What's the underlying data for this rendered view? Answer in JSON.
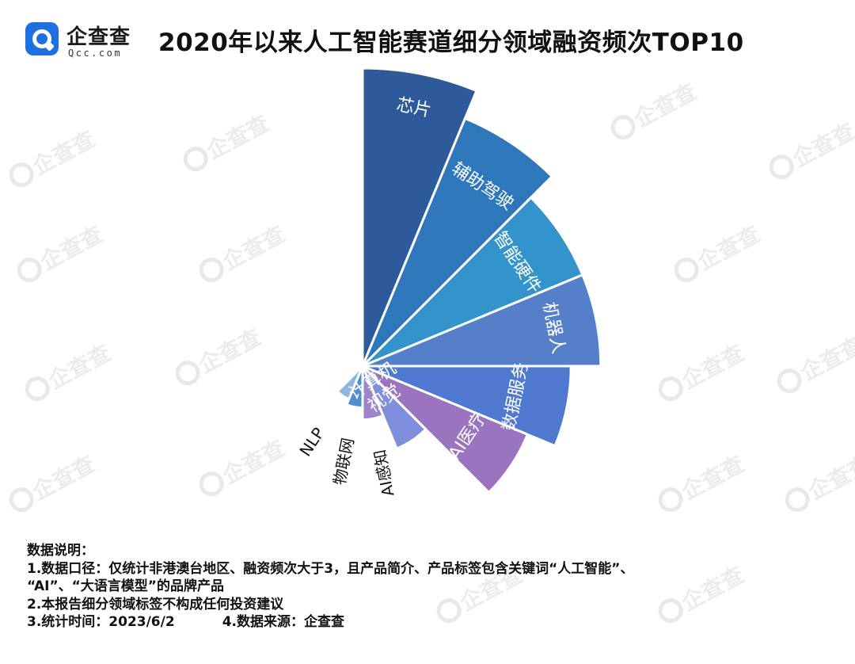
{
  "logo": {
    "name": "企查查",
    "sub": "Qcc.com"
  },
  "title": "2020年以来人工智能赛道细分领域融资频次TOP10",
  "watermark": "企查查",
  "chart_data": {
    "type": "rose",
    "categories": [
      "芯片",
      "辅助驾驶",
      "智能硬件",
      "机器人",
      "数据服务",
      "AI医疗",
      "计算机视觉",
      "AI感知",
      "物联网",
      "NLP"
    ],
    "values": [
      100,
      90,
      80,
      80,
      70,
      60,
      30,
      18,
      14,
      12
    ],
    "colors": [
      "#2d5a9a",
      "#2e77bb",
      "#3394cb",
      "#5580c9",
      "#4e79cf",
      "#9a74be",
      "#7f8fdc",
      "#9c86c8",
      "#4f8fcf",
      "#8db6de"
    ],
    "label_positions": [
      "inside",
      "inside",
      "inside",
      "inside",
      "inside",
      "inside",
      "inside",
      "outside",
      "outside",
      "outside"
    ]
  },
  "notes": {
    "heading": "数据说明：",
    "line1a": "1.数据口径：仅统计非港澳台地区、融资频次大于3，且产品简介、产品标签包含关键词“人工智能”、",
    "line1b": "“AI”、“大语言模型”的品牌产品",
    "line2": "2.本报告细分领域标签不构成任何投资建议",
    "line3": "3.统计时间：2023/6/2",
    "line4": "4.数据来源：企查查"
  }
}
